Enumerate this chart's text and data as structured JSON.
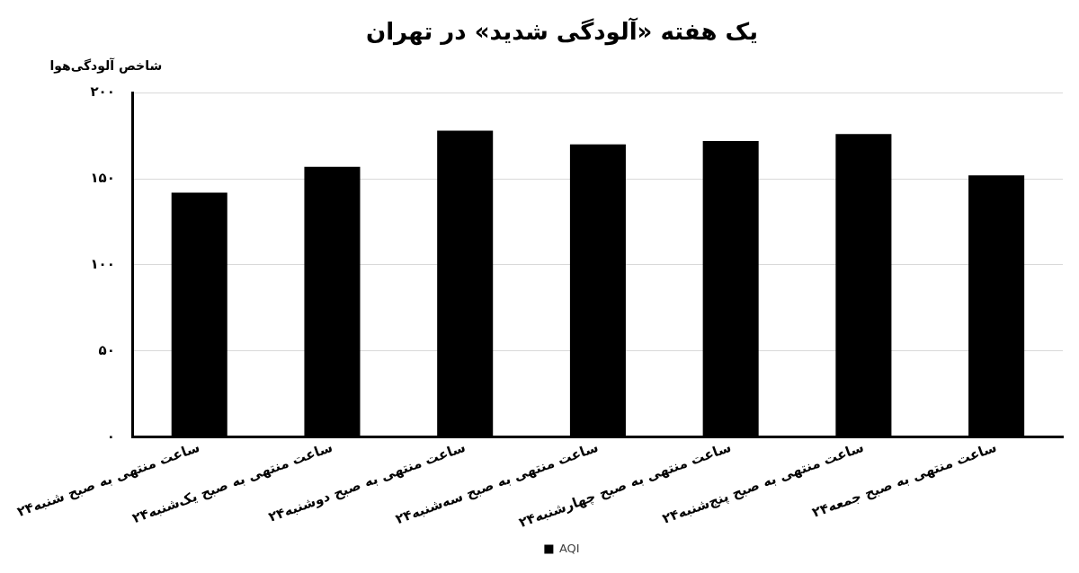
{
  "chart_data": {
    "type": "bar",
    "title": "یک هفته «آلودگی شدید» در تهران",
    "ylabel": "شاخص آلودگی‌هوا",
    "categories": [
      "۲۴ساعت منتهی به صبح شنبه",
      "۲۴ساعت منتهی به صبح یک‌شنبه",
      "۲۴ساعت منتهی به صبح دوشنبه",
      "۲۴ساعت منتهی به صبح سه‌شنبه",
      "۲۴ساعت منتهی به صبح چهارشنبه",
      "۲۴ساعت منتهی به صبح پنج‌شنبه",
      "۲۴ساعت منتهی به صبح جمعه"
    ],
    "series": [
      {
        "name": "AQI",
        "color": "#000000",
        "values": [
          142,
          157,
          178,
          170,
          172,
          176,
          152
        ]
      }
    ],
    "ylim": [
      0,
      200
    ],
    "yticks": [
      {
        "value": 0,
        "label": "۰"
      },
      {
        "value": 50,
        "label": "۵۰"
      },
      {
        "value": 100,
        "label": "۱۰۰"
      },
      {
        "value": 150,
        "label": "۱۵۰"
      },
      {
        "value": 200,
        "label": "۲۰۰"
      }
    ],
    "grid": "y",
    "legend": "bottom"
  }
}
